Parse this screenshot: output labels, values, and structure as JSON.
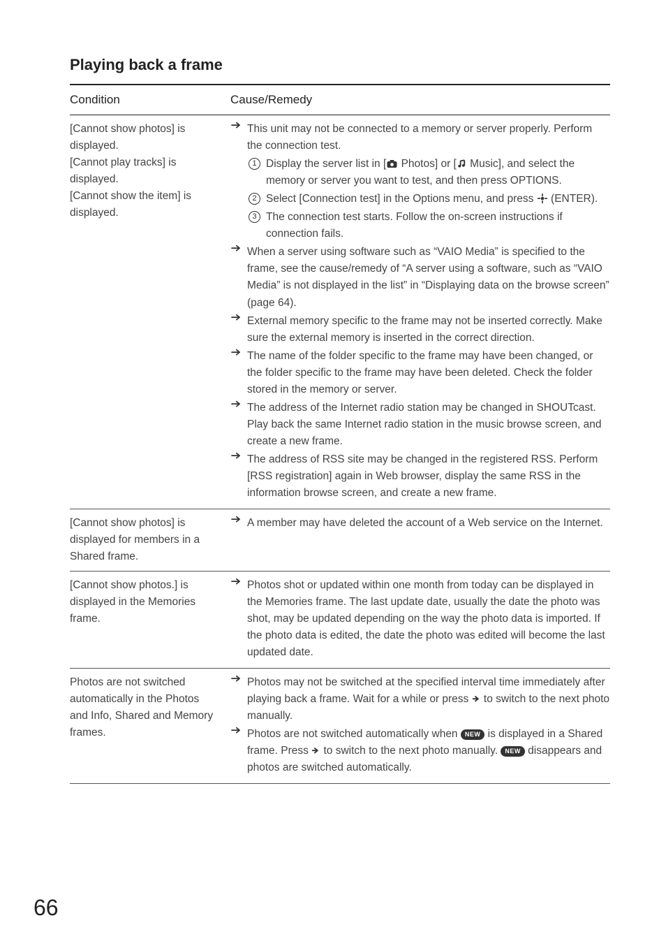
{
  "section_title": "Playing back a frame",
  "header": {
    "condition": "Condition",
    "cause": "Cause/Remedy"
  },
  "page_number": "66",
  "icons": {
    "arrow_color": "#333333",
    "icon_color": "#333333",
    "pill_bg": "#333333",
    "pill_fg": "#ffffff",
    "new_label": "NEW"
  },
  "rows": [
    {
      "condition_lines": [
        "[Cannot show photos] is displayed.",
        "[Cannot play tracks] is displayed.",
        "[Cannot show the item] is displayed."
      ],
      "remedies": [
        {
          "text_before": "This unit may not be connected to a memory or server properly. Perform the connection test.",
          "substeps": [
            {
              "num": "1",
              "pre": "Display the server list in [",
              "icon": "camera",
              "mid": " Photos] or [",
              "icon2": "music",
              "post": " Music], and select the memory or server you want to test, and then press OPTIONS."
            },
            {
              "num": "2",
              "pre": "Select [Connection test] in the Options menu, and press ",
              "icon": "enter",
              "post": " (ENTER)."
            },
            {
              "num": "3",
              "pre": "The connection test starts. Follow the on-screen instructions if connection fails."
            }
          ]
        },
        {
          "text_before": "When a server using software such as “VAIO Media” is specified to the frame, see the cause/remedy of “A server using a software, such as “VAIO Media” is not displayed in the list” in “Displaying data on the browse screen” (page 64)."
        },
        {
          "text_before": "External memory specific to the frame may not be inserted correctly. Make sure the external memory is inserted in the correct direction."
        },
        {
          "text_before": "The name of the folder specific to the frame may have been changed, or the folder specific to the frame may have been deleted. Check the folder stored in the memory or server."
        },
        {
          "text_before": "The address of the Internet radio station may be changed in SHOUTcast. Play back the same Internet radio station in the music browse screen, and create a new frame."
        },
        {
          "text_before": "The address of RSS site may be changed in the registered RSS. Perform [RSS registration] again in Web browser, display the same RSS in the information browse screen, and create a new frame."
        }
      ]
    },
    {
      "condition_lines": [
        "[Cannot show photos] is displayed for members in a Shared frame."
      ],
      "remedies": [
        {
          "text_before": "A member may have deleted the account of a Web service on the Internet."
        }
      ]
    },
    {
      "condition_lines": [
        "[Cannot show photos.] is displayed in the Memories frame."
      ],
      "remedies": [
        {
          "text_before": "Photos shot or updated within one month from today can be displayed in the Memories frame. The last update date, usually the date the photo was shot, may be updated depending on the way the photo data is imported. If the photo data is edited, the date the photo was edited will become the last updated date."
        }
      ]
    },
    {
      "condition_lines": [
        "Photos are not switched automatically in the Photos and Info, Shared and Memory frames."
      ],
      "remedies": [
        {
          "text_before": "Photos may not be switched at the specified interval time immediately after playing back a frame. Wait for a while or press ",
          "inline_icon": "right",
          "text_after": " to switch to the next photo manually."
        },
        {
          "text_before": "Photos are not switched automatically when ",
          "inline_pill": true,
          "text_mid": " is displayed in a Shared frame. Press ",
          "inline_icon": "right",
          "text_after": " to switch to the next photo manually. ",
          "inline_pill2": true,
          "text_end": " disappears and photos are switched automatically."
        }
      ]
    }
  ]
}
